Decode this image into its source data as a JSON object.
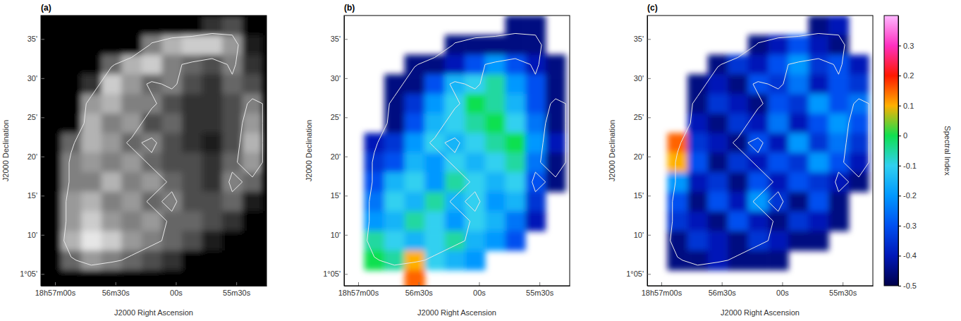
{
  "chart_data": [
    {
      "type": "heatmap",
      "title": "(a)",
      "x_label": "J2000 Right Ascension",
      "y_label": "J2000 Declination",
      "color": "gray",
      "zlim": [
        0,
        1
      ],
      "contours": [
        0.45
      ],
      "xlim": [
        127,
        15
      ],
      "ylim": [
        3.5,
        38
      ],
      "xticks": [
        {
          "value": 120,
          "label": "18h57m00s"
        },
        {
          "value": 90,
          "label": "56m30s"
        },
        {
          "value": 60,
          "label": "00s"
        },
        {
          "value": 30,
          "label": "55m30s"
        }
      ],
      "yticks": [
        {
          "value": 5,
          "label": "1°05'"
        },
        {
          "value": 10,
          "label": "10'"
        },
        {
          "value": 15,
          "label": "15'"
        },
        {
          "value": 20,
          "label": "20'"
        },
        {
          "value": 25,
          "label": "25'"
        },
        {
          "value": 30,
          "label": "30'"
        },
        {
          "value": 35,
          "label": "35'"
        }
      ],
      "x": [
        122,
        112,
        102,
        92,
        82,
        72,
        62,
        52,
        42,
        32,
        22
      ],
      "y": [
        36.75,
        34.25,
        31.75,
        29.25,
        26.75,
        24.25,
        21.75,
        19.25,
        16.75,
        14.25,
        11.75,
        9.25,
        6.75,
        4.25
      ],
      "cells": [
        [
          0,
          0,
          0,
          0,
          0,
          0,
          0,
          0,
          0.2,
          0.3,
          0
        ],
        [
          0,
          0,
          0,
          0,
          0,
          0.5,
          0.7,
          0.8,
          0.8,
          0.6,
          0.1
        ],
        [
          0,
          0,
          0,
          0.4,
          0.7,
          0.8,
          0.5,
          0.4,
          0.3,
          0.5,
          0.2
        ],
        [
          0,
          0,
          0.2,
          0.8,
          0.6,
          0.4,
          0.5,
          0.3,
          0.2,
          0.4,
          0.3
        ],
        [
          0,
          0,
          0.6,
          0.7,
          0.5,
          0.5,
          0.3,
          0.2,
          0.2,
          0.3,
          0.5
        ],
        [
          0,
          0,
          0.7,
          0.5,
          0.6,
          0.3,
          0.4,
          0.2,
          0.2,
          0.3,
          0.6
        ],
        [
          0,
          0.4,
          0.7,
          0.6,
          0.4,
          0.5,
          0.3,
          0.2,
          0.1,
          0.3,
          0.7
        ],
        [
          0,
          0.5,
          0.6,
          0.5,
          0.6,
          0.4,
          0.3,
          0.3,
          0.2,
          0.4,
          0.6
        ],
        [
          0,
          0.5,
          0.5,
          0.7,
          0.5,
          0.6,
          0.4,
          0.3,
          0.2,
          0.5,
          0.4
        ],
        [
          0,
          0.6,
          0.7,
          0.5,
          0.6,
          0.4,
          0.5,
          0.3,
          0.3,
          0.4,
          0.1
        ],
        [
          0,
          0.6,
          0.8,
          0.6,
          0.5,
          0.6,
          0.4,
          0.4,
          0.3,
          0.2,
          0
        ],
        [
          0,
          0.7,
          0.9,
          0.8,
          0.6,
          0.5,
          0.4,
          0.3,
          0.1,
          0,
          0
        ],
        [
          0,
          0.4,
          0.6,
          0.5,
          0.4,
          0.3,
          0.2,
          0,
          0,
          0,
          0
        ],
        [
          0,
          0,
          0,
          0,
          0,
          0,
          0,
          0,
          0,
          0,
          0
        ]
      ]
    },
    {
      "type": "heatmap",
      "title": "(b)",
      "x_label": "J2000 Right Ascension",
      "y_label": "J2000 Declination",
      "color": "spectral",
      "zlim": [
        -0.5,
        0.4
      ],
      "xlim": [
        127,
        15
      ],
      "ylim": [
        3.5,
        38
      ],
      "xticks": [
        {
          "value": 120,
          "label": "18h57m00s"
        },
        {
          "value": 90,
          "label": "56m30s"
        },
        {
          "value": 60,
          "label": "00s"
        },
        {
          "value": 30,
          "label": "55m30s"
        }
      ],
      "yticks": [
        {
          "value": 5,
          "label": "1°05'"
        },
        {
          "value": 10,
          "label": "10'"
        },
        {
          "value": 15,
          "label": "15'"
        },
        {
          "value": 20,
          "label": "20'"
        },
        {
          "value": 25,
          "label": "25'"
        },
        {
          "value": 30,
          "label": "30'"
        },
        {
          "value": 35,
          "label": "35'"
        }
      ],
      "x": [
        122,
        112,
        102,
        92,
        82,
        72,
        62,
        52,
        42,
        32,
        22
      ],
      "y": [
        36.75,
        34.25,
        31.75,
        29.25,
        26.75,
        24.25,
        21.75,
        19.25,
        16.75,
        14.25,
        11.75,
        9.25,
        6.75,
        4.25
      ],
      "cells": [
        [
          null,
          null,
          null,
          null,
          null,
          null,
          null,
          null,
          -0.45,
          -0.45,
          null
        ],
        [
          null,
          null,
          null,
          null,
          null,
          -0.45,
          -0.45,
          -0.45,
          -0.45,
          -0.45,
          null
        ],
        [
          null,
          null,
          null,
          -0.45,
          -0.45,
          -0.4,
          -0.3,
          -0.2,
          -0.3,
          -0.4,
          -0.45
        ],
        [
          null,
          null,
          -0.45,
          -0.45,
          -0.3,
          -0.15,
          -0.1,
          -0.05,
          -0.2,
          -0.3,
          -0.45
        ],
        [
          null,
          null,
          -0.45,
          -0.35,
          -0.2,
          -0.1,
          0,
          -0.05,
          -0.15,
          -0.3,
          -0.45
        ],
        [
          null,
          null,
          -0.45,
          -0.3,
          -0.15,
          -0.1,
          -0.05,
          0,
          -0.1,
          -0.25,
          -0.45
        ],
        [
          null,
          -0.4,
          -0.35,
          -0.2,
          -0.1,
          -0.15,
          -0.1,
          -0.05,
          0,
          -0.2,
          -0.4
        ],
        [
          null,
          -0.35,
          -0.3,
          -0.15,
          -0.2,
          -0.1,
          -0.15,
          -0.1,
          -0.05,
          -0.25,
          -0.45
        ],
        [
          null,
          -0.3,
          -0.15,
          -0.1,
          -0.2,
          -0.05,
          -0.1,
          -0.15,
          -0.1,
          -0.3,
          -0.45
        ],
        [
          null,
          -0.25,
          -0.1,
          -0.15,
          -0.05,
          -0.15,
          -0.1,
          -0.2,
          -0.15,
          -0.35,
          null
        ],
        [
          null,
          -0.2,
          -0.15,
          -0.05,
          -0.1,
          -0.2,
          -0.1,
          -0.15,
          -0.25,
          -0.4,
          null
        ],
        [
          null,
          -0.05,
          -0.1,
          -0.15,
          -0.1,
          -0.05,
          -0.15,
          -0.2,
          -0.3,
          null,
          null
        ],
        [
          null,
          0,
          -0.05,
          0.1,
          -0.1,
          -0.15,
          -0.2,
          null,
          null,
          null,
          null
        ],
        [
          null,
          null,
          null,
          0.15,
          null,
          null,
          null,
          null,
          null,
          null,
          null
        ]
      ]
    },
    {
      "type": "heatmap",
      "title": "(c)",
      "x_label": "J2000 Right Ascension",
      "y_label": "J2000 Declination",
      "color": "spectral",
      "zlim": [
        -0.5,
        0.4
      ],
      "colorbar_label": "Spectral Index",
      "colorbar_ticks": [
        -0.5,
        -0.4,
        -0.3,
        -0.2,
        -0.1,
        0,
        0.1,
        0.2,
        0.3
      ],
      "xlim": [
        127,
        15
      ],
      "ylim": [
        3.5,
        38
      ],
      "xticks": [
        {
          "value": 120,
          "label": "18h57m00s"
        },
        {
          "value": 90,
          "label": "56m30s"
        },
        {
          "value": 60,
          "label": "00s"
        },
        {
          "value": 30,
          "label": "55m30s"
        }
      ],
      "yticks": [
        {
          "value": 5,
          "label": "1°05'"
        },
        {
          "value": 10,
          "label": "10'"
        },
        {
          "value": 15,
          "label": "15'"
        },
        {
          "value": 20,
          "label": "20'"
        },
        {
          "value": 25,
          "label": "25'"
        },
        {
          "value": 30,
          "label": "30'"
        },
        {
          "value": 35,
          "label": "35'"
        }
      ],
      "x": [
        122,
        112,
        102,
        92,
        82,
        72,
        62,
        52,
        42,
        32,
        22
      ],
      "y": [
        36.75,
        34.25,
        31.75,
        29.25,
        26.75,
        24.25,
        21.75,
        19.25,
        16.75,
        14.25,
        11.75,
        9.25,
        6.75,
        4.25
      ],
      "cells": [
        [
          null,
          null,
          null,
          null,
          null,
          null,
          null,
          null,
          -0.45,
          -0.4,
          null
        ],
        [
          null,
          null,
          null,
          null,
          null,
          -0.45,
          -0.4,
          -0.3,
          -0.4,
          -0.45,
          null
        ],
        [
          null,
          null,
          null,
          -0.45,
          -0.35,
          -0.4,
          -0.3,
          -0.2,
          -0.35,
          -0.3,
          -0.4
        ],
        [
          null,
          null,
          -0.45,
          -0.4,
          -0.45,
          -0.3,
          -0.35,
          -0.25,
          -0.4,
          -0.3,
          -0.35
        ],
        [
          null,
          null,
          -0.45,
          -0.35,
          -0.4,
          -0.45,
          -0.3,
          -0.35,
          -0.2,
          -0.3,
          -0.25
        ],
        [
          null,
          null,
          -0.4,
          -0.45,
          -0.35,
          -0.4,
          -0.25,
          -0.4,
          -0.3,
          -0.2,
          -0.3
        ],
        [
          null,
          0.15,
          -0.35,
          -0.4,
          -0.45,
          -0.3,
          -0.4,
          -0.2,
          -0.35,
          -0.25,
          -0.35
        ],
        [
          null,
          0.1,
          -0.3,
          -0.45,
          -0.35,
          -0.4,
          -0.3,
          -0.35,
          -0.2,
          -0.3,
          -0.4
        ],
        [
          null,
          -0.2,
          -0.4,
          -0.35,
          -0.45,
          -0.3,
          -0.4,
          -0.3,
          -0.35,
          -0.4,
          -0.45
        ],
        [
          null,
          -0.3,
          -0.45,
          -0.3,
          -0.4,
          -0.2,
          -0.35,
          -0.45,
          -0.3,
          -0.45,
          null
        ],
        [
          null,
          -0.35,
          -0.4,
          -0.45,
          -0.3,
          -0.4,
          -0.45,
          -0.35,
          -0.4,
          -0.45,
          null
        ],
        [
          null,
          -0.45,
          -0.35,
          -0.4,
          -0.45,
          -0.35,
          -0.4,
          -0.45,
          -0.45,
          null,
          null
        ],
        [
          null,
          -0.45,
          -0.45,
          -0.4,
          -0.45,
          -0.45,
          -0.45,
          null,
          null,
          null,
          null
        ],
        [
          null,
          null,
          null,
          null,
          null,
          null,
          null,
          null,
          null,
          null,
          null
        ]
      ]
    }
  ]
}
